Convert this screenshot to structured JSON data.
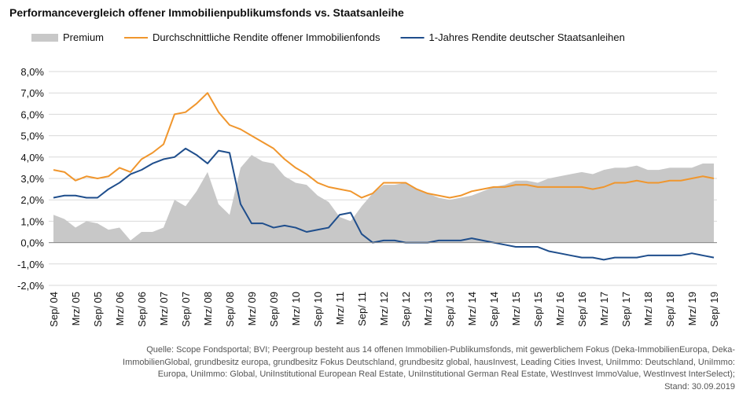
{
  "chart_data": {
    "type": "line",
    "title": "Performancevergleich offener Immobilienpublikumsfonds vs. Staatsanleihe",
    "categories": [
      "Sep/ 04",
      null,
      "Mrz/ 05",
      null,
      "Sep/ 05",
      null,
      "Mrz/ 06",
      null,
      "Sep/ 06",
      null,
      "Mrz/ 07",
      null,
      "Sep/ 07",
      null,
      "Mrz/ 08",
      null,
      "Sep/ 08",
      null,
      "Mrz/ 09",
      null,
      "Sep/ 09",
      null,
      "Mrz/ 10",
      null,
      "Sep/ 10",
      null,
      "Mrz/ 11",
      null,
      "Sep/ 11",
      null,
      "Mrz/ 12",
      null,
      "Sep/ 12",
      null,
      "Mrz/ 13",
      null,
      "Sep/ 13",
      null,
      "Mrz/ 14",
      null,
      "Sep/ 14",
      null,
      "Mrz/ 15",
      null,
      "Sep/ 15",
      null,
      "Mrz/ 16",
      null,
      "Sep/ 16",
      null,
      "Mrz/ 17",
      null,
      "Sep/ 17",
      null,
      "Mrz/ 18",
      null,
      "Sep/ 18",
      null,
      "Mrz/ 19",
      null,
      "Sep/ 19"
    ],
    "series": [
      {
        "name": "Premium",
        "style": "area",
        "color": "#c8c8c8",
        "values": [
          1.3,
          1.1,
          0.7,
          1.0,
          0.9,
          0.6,
          0.7,
          0.1,
          0.5,
          0.5,
          0.7,
          2.0,
          1.7,
          2.4,
          3.3,
          1.8,
          1.3,
          3.5,
          4.1,
          3.8,
          3.7,
          3.1,
          2.8,
          2.7,
          2.2,
          1.9,
          1.2,
          1.0,
          1.7,
          2.3,
          2.7,
          2.7,
          2.8,
          2.5,
          2.3,
          2.1,
          2.0,
          2.1,
          2.2,
          2.4,
          2.6,
          2.7,
          2.9,
          2.9,
          2.8,
          3.0,
          3.1,
          3.2,
          3.3,
          3.2,
          3.4,
          3.5,
          3.5,
          3.6,
          3.4,
          3.4,
          3.5,
          3.5,
          3.5,
          3.7,
          3.7
        ]
      },
      {
        "name": "Durchschnittliche Rendite offener Immobilienfonds",
        "style": "line",
        "color": "#f0962d",
        "values": [
          3.4,
          3.3,
          2.9,
          3.1,
          3.0,
          3.1,
          3.5,
          3.3,
          3.9,
          4.2,
          4.6,
          6.0,
          6.1,
          6.5,
          7.0,
          6.1,
          5.5,
          5.3,
          5.0,
          4.7,
          4.4,
          3.9,
          3.5,
          3.2,
          2.8,
          2.6,
          2.5,
          2.4,
          2.1,
          2.3,
          2.8,
          2.8,
          2.8,
          2.5,
          2.3,
          2.2,
          2.1,
          2.2,
          2.4,
          2.5,
          2.6,
          2.6,
          2.7,
          2.7,
          2.6,
          2.6,
          2.6,
          2.6,
          2.6,
          2.5,
          2.6,
          2.8,
          2.8,
          2.9,
          2.8,
          2.8,
          2.9,
          2.9,
          3.0,
          3.1,
          3.0
        ]
      },
      {
        "name": "1-Jahres Rendite deutscher Staatsanleihen",
        "style": "line",
        "color": "#1f4e8c",
        "values": [
          2.1,
          2.2,
          2.2,
          2.1,
          2.1,
          2.5,
          2.8,
          3.2,
          3.4,
          3.7,
          3.9,
          4.0,
          4.4,
          4.1,
          3.7,
          4.3,
          4.2,
          1.8,
          0.9,
          0.9,
          0.7,
          0.8,
          0.7,
          0.5,
          0.6,
          0.7,
          1.3,
          1.4,
          0.4,
          0.0,
          0.1,
          0.1,
          0.0,
          0.0,
          0.0,
          0.1,
          0.1,
          0.1,
          0.2,
          0.1,
          0.0,
          -0.1,
          -0.2,
          -0.2,
          -0.2,
          -0.4,
          -0.5,
          -0.6,
          -0.7,
          -0.7,
          -0.8,
          -0.7,
          -0.7,
          -0.7,
          -0.6,
          -0.6,
          -0.6,
          -0.6,
          -0.5,
          -0.6,
          -0.7
        ]
      }
    ],
    "ylim": [
      -2,
      8
    ],
    "yticks": [
      {
        "value": -2,
        "label": "-2,0%"
      },
      {
        "value": -1,
        "label": "-1,0%"
      },
      {
        "value": 0,
        "label": "0,0%"
      },
      {
        "value": 1,
        "label": "1,0%"
      },
      {
        "value": 2,
        "label": "2,0%"
      },
      {
        "value": 3,
        "label": "3,0%"
      },
      {
        "value": 4,
        "label": "4,0%"
      },
      {
        "value": 5,
        "label": "5,0%"
      },
      {
        "value": 6,
        "label": "6,0%"
      },
      {
        "value": 7,
        "label": "7,0%"
      },
      {
        "value": 8,
        "label": "8,0%"
      }
    ],
    "grid": true,
    "legend": "top",
    "source_lines": [
      "Quelle: Scope Fondsportal; BVI; Peergroup besteht aus 14 offenen Immobilien-Publikumsfonds, mit gewerblichem Fokus (Deka-ImmobilienEuropa, Deka-",
      "ImmobilienGlobal, grundbesitz europa, grundbesitz Fokus Deutschland, grundbesitz global, hausInvest, Leading Cities Invest, UniImmo: Deutschland, UniImmo:",
      "Europa, UniImmo: Global, UniInstitutional European Real Estate, UniInstitutional German Real Estate, WestInvest ImmoValue, WestInvest InterSelect);",
      "Stand: 30.09.2019"
    ]
  }
}
